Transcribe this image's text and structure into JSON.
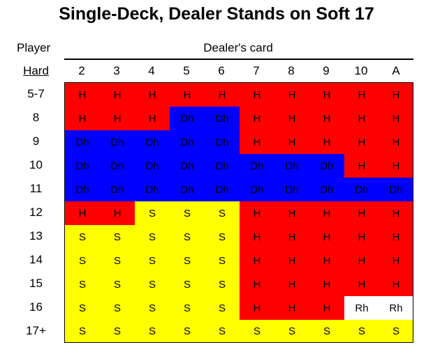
{
  "title": "Single-Deck, Dealer Stands on Soft 17",
  "player_label": "Player",
  "dealer_label": "Dealer's card",
  "hard_label": "Hard",
  "dealer_cards": [
    "2",
    "3",
    "4",
    "5",
    "6",
    "7",
    "8",
    "9",
    "10",
    "A"
  ],
  "rows": [
    {
      "hand": "5-7",
      "actions": [
        "H",
        "H",
        "H",
        "H",
        "H",
        "H",
        "H",
        "H",
        "H",
        "H"
      ]
    },
    {
      "hand": "8",
      "actions": [
        "H",
        "H",
        "H",
        "Dh",
        "Dh",
        "H",
        "H",
        "H",
        "H",
        "H"
      ]
    },
    {
      "hand": "9",
      "actions": [
        "Dh",
        "Dh",
        "Dh",
        "Dh",
        "Dh",
        "H",
        "H",
        "H",
        "H",
        "H"
      ]
    },
    {
      "hand": "10",
      "actions": [
        "Dh",
        "Dh",
        "Dh",
        "Dh",
        "Dh",
        "Dh",
        "Dh",
        "Dh",
        "H",
        "H"
      ]
    },
    {
      "hand": "11",
      "actions": [
        "Dh",
        "Dh",
        "Dh",
        "Dh",
        "Dh",
        "Dh",
        "Dh",
        "Dh",
        "Dh",
        "Dh"
      ]
    },
    {
      "hand": "12",
      "actions": [
        "H",
        "H",
        "S",
        "S",
        "S",
        "H",
        "H",
        "H",
        "H",
        "H"
      ]
    },
    {
      "hand": "13",
      "actions": [
        "S",
        "S",
        "S",
        "S",
        "S",
        "H",
        "H",
        "H",
        "H",
        "H"
      ]
    },
    {
      "hand": "14",
      "actions": [
        "S",
        "S",
        "S",
        "S",
        "S",
        "H",
        "H",
        "H",
        "H",
        "H"
      ]
    },
    {
      "hand": "15",
      "actions": [
        "S",
        "S",
        "S",
        "S",
        "S",
        "H",
        "H",
        "H",
        "H",
        "H"
      ]
    },
    {
      "hand": "16",
      "actions": [
        "S",
        "S",
        "S",
        "S",
        "S",
        "H",
        "H",
        "H",
        "Rh",
        "Rh"
      ]
    },
    {
      "hand": "17+",
      "actions": [
        "S",
        "S",
        "S",
        "S",
        "S",
        "S",
        "S",
        "S",
        "S",
        "S"
      ]
    }
  ],
  "action_colors": {
    "H": "#ff0000",
    "S": "#ffff00",
    "Dh": "#0000ff",
    "Rh": "#ffffff"
  }
}
